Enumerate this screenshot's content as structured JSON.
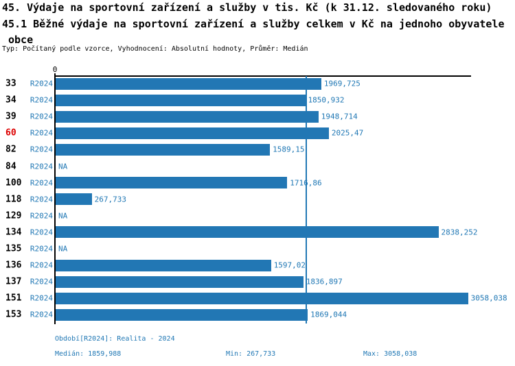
{
  "header": {
    "title_line1": "45. Výdaje na sportovní zařízení a služby v tis. Kč (k 31.12. sledovaného roku)",
    "title_line2": "45.1 Běžné výdaje na sportovní zařízení a služby celkem v Kč na jednoho obyvatele",
    "title_line3": "obce",
    "meta": "Typ: Počítaný podle vzorce, Vyhodnocení: Absolutní hodnoty, Průměr: Medián"
  },
  "chart_data": {
    "type": "bar",
    "orientation": "horizontal",
    "title": "45.1 Běžné výdaje na sportovní zařízení a služby celkem v Kč na jednoho obyvatele obce",
    "categories": [
      "33",
      "34",
      "39",
      "60",
      "82",
      "84",
      "100",
      "118",
      "129",
      "134",
      "135",
      "136",
      "137",
      "151",
      "153"
    ],
    "series_label": "R2024",
    "values": [
      1969.725,
      1850.932,
      1948.714,
      2025.47,
      1589.15,
      null,
      1716.86,
      267.733,
      null,
      2838.252,
      null,
      1597.02,
      1836.897,
      3058.038,
      1869.044
    ],
    "value_labels": [
      "1969,725",
      "1850,932",
      "1948,714",
      "2025,47",
      "1589,15",
      "NA",
      "1716,86",
      "267,733",
      "NA",
      "2838,252",
      "NA",
      "1597,02",
      "1836,897",
      "3058,038",
      "1869,044"
    ],
    "na_label": "NA",
    "highlighted_category": "60",
    "axis_zero_label": "0",
    "xlim": [
      0,
      3080
    ],
    "grid": false,
    "legend": false,
    "median": 1859.988
  },
  "footer": {
    "period": "Období[R2024]: Realita - 2024",
    "median": "Medián: 1859,988",
    "min": "Min: 267,733",
    "max": "Max: 3058,038"
  },
  "colors": {
    "bar": "#2277b4",
    "text_blue": "#1f77b4",
    "highlight_red": "#dd0000",
    "axis_black": "#000000"
  }
}
